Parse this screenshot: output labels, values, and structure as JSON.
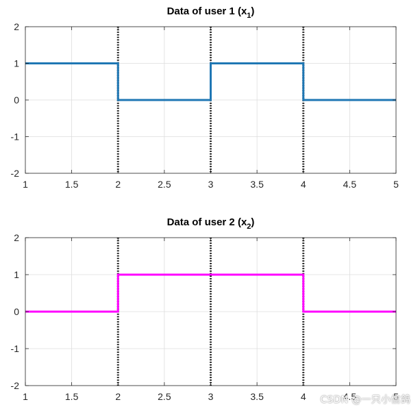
{
  "chart_data": [
    {
      "type": "line",
      "title": "Data of user 1 (x",
      "title_subscript": "1",
      "title_close": ")",
      "xlim": [
        1,
        5
      ],
      "ylim": [
        -2,
        2
      ],
      "xticks": [
        1,
        1.5,
        2,
        2.5,
        3,
        3.5,
        4,
        4.5,
        5
      ],
      "yticks": [
        -2,
        -1,
        0,
        1,
        2
      ],
      "grid": true,
      "series": [
        {
          "color": "#1f77b4",
          "step": true,
          "x": [
            1,
            2,
            2,
            3,
            3,
            4,
            4,
            5
          ],
          "y": [
            1,
            1,
            0,
            0,
            1,
            1,
            0,
            0
          ]
        }
      ],
      "vlines": [
        2,
        3,
        4
      ],
      "vline_color": "#000000",
      "vline_style": "dotted"
    },
    {
      "type": "line",
      "title": "Data of user 2 (x",
      "title_subscript": "2",
      "title_close": ")",
      "xlim": [
        1,
        5
      ],
      "ylim": [
        -2,
        2
      ],
      "xticks": [
        1,
        1.5,
        2,
        2.5,
        3,
        3.5,
        4,
        4.5,
        5
      ],
      "yticks": [
        -2,
        -1,
        0,
        1,
        2
      ],
      "grid": true,
      "series": [
        {
          "color": "#ff00ff",
          "step": true,
          "x": [
            1,
            2,
            2,
            4,
            4,
            5
          ],
          "y": [
            0,
            0,
            1,
            1,
            0,
            0
          ]
        }
      ],
      "vlines": [
        2,
        3,
        4
      ],
      "vline_color": "#000000",
      "vline_style": "dotted"
    }
  ],
  "watermark": "CSDN @一只小信鸽"
}
